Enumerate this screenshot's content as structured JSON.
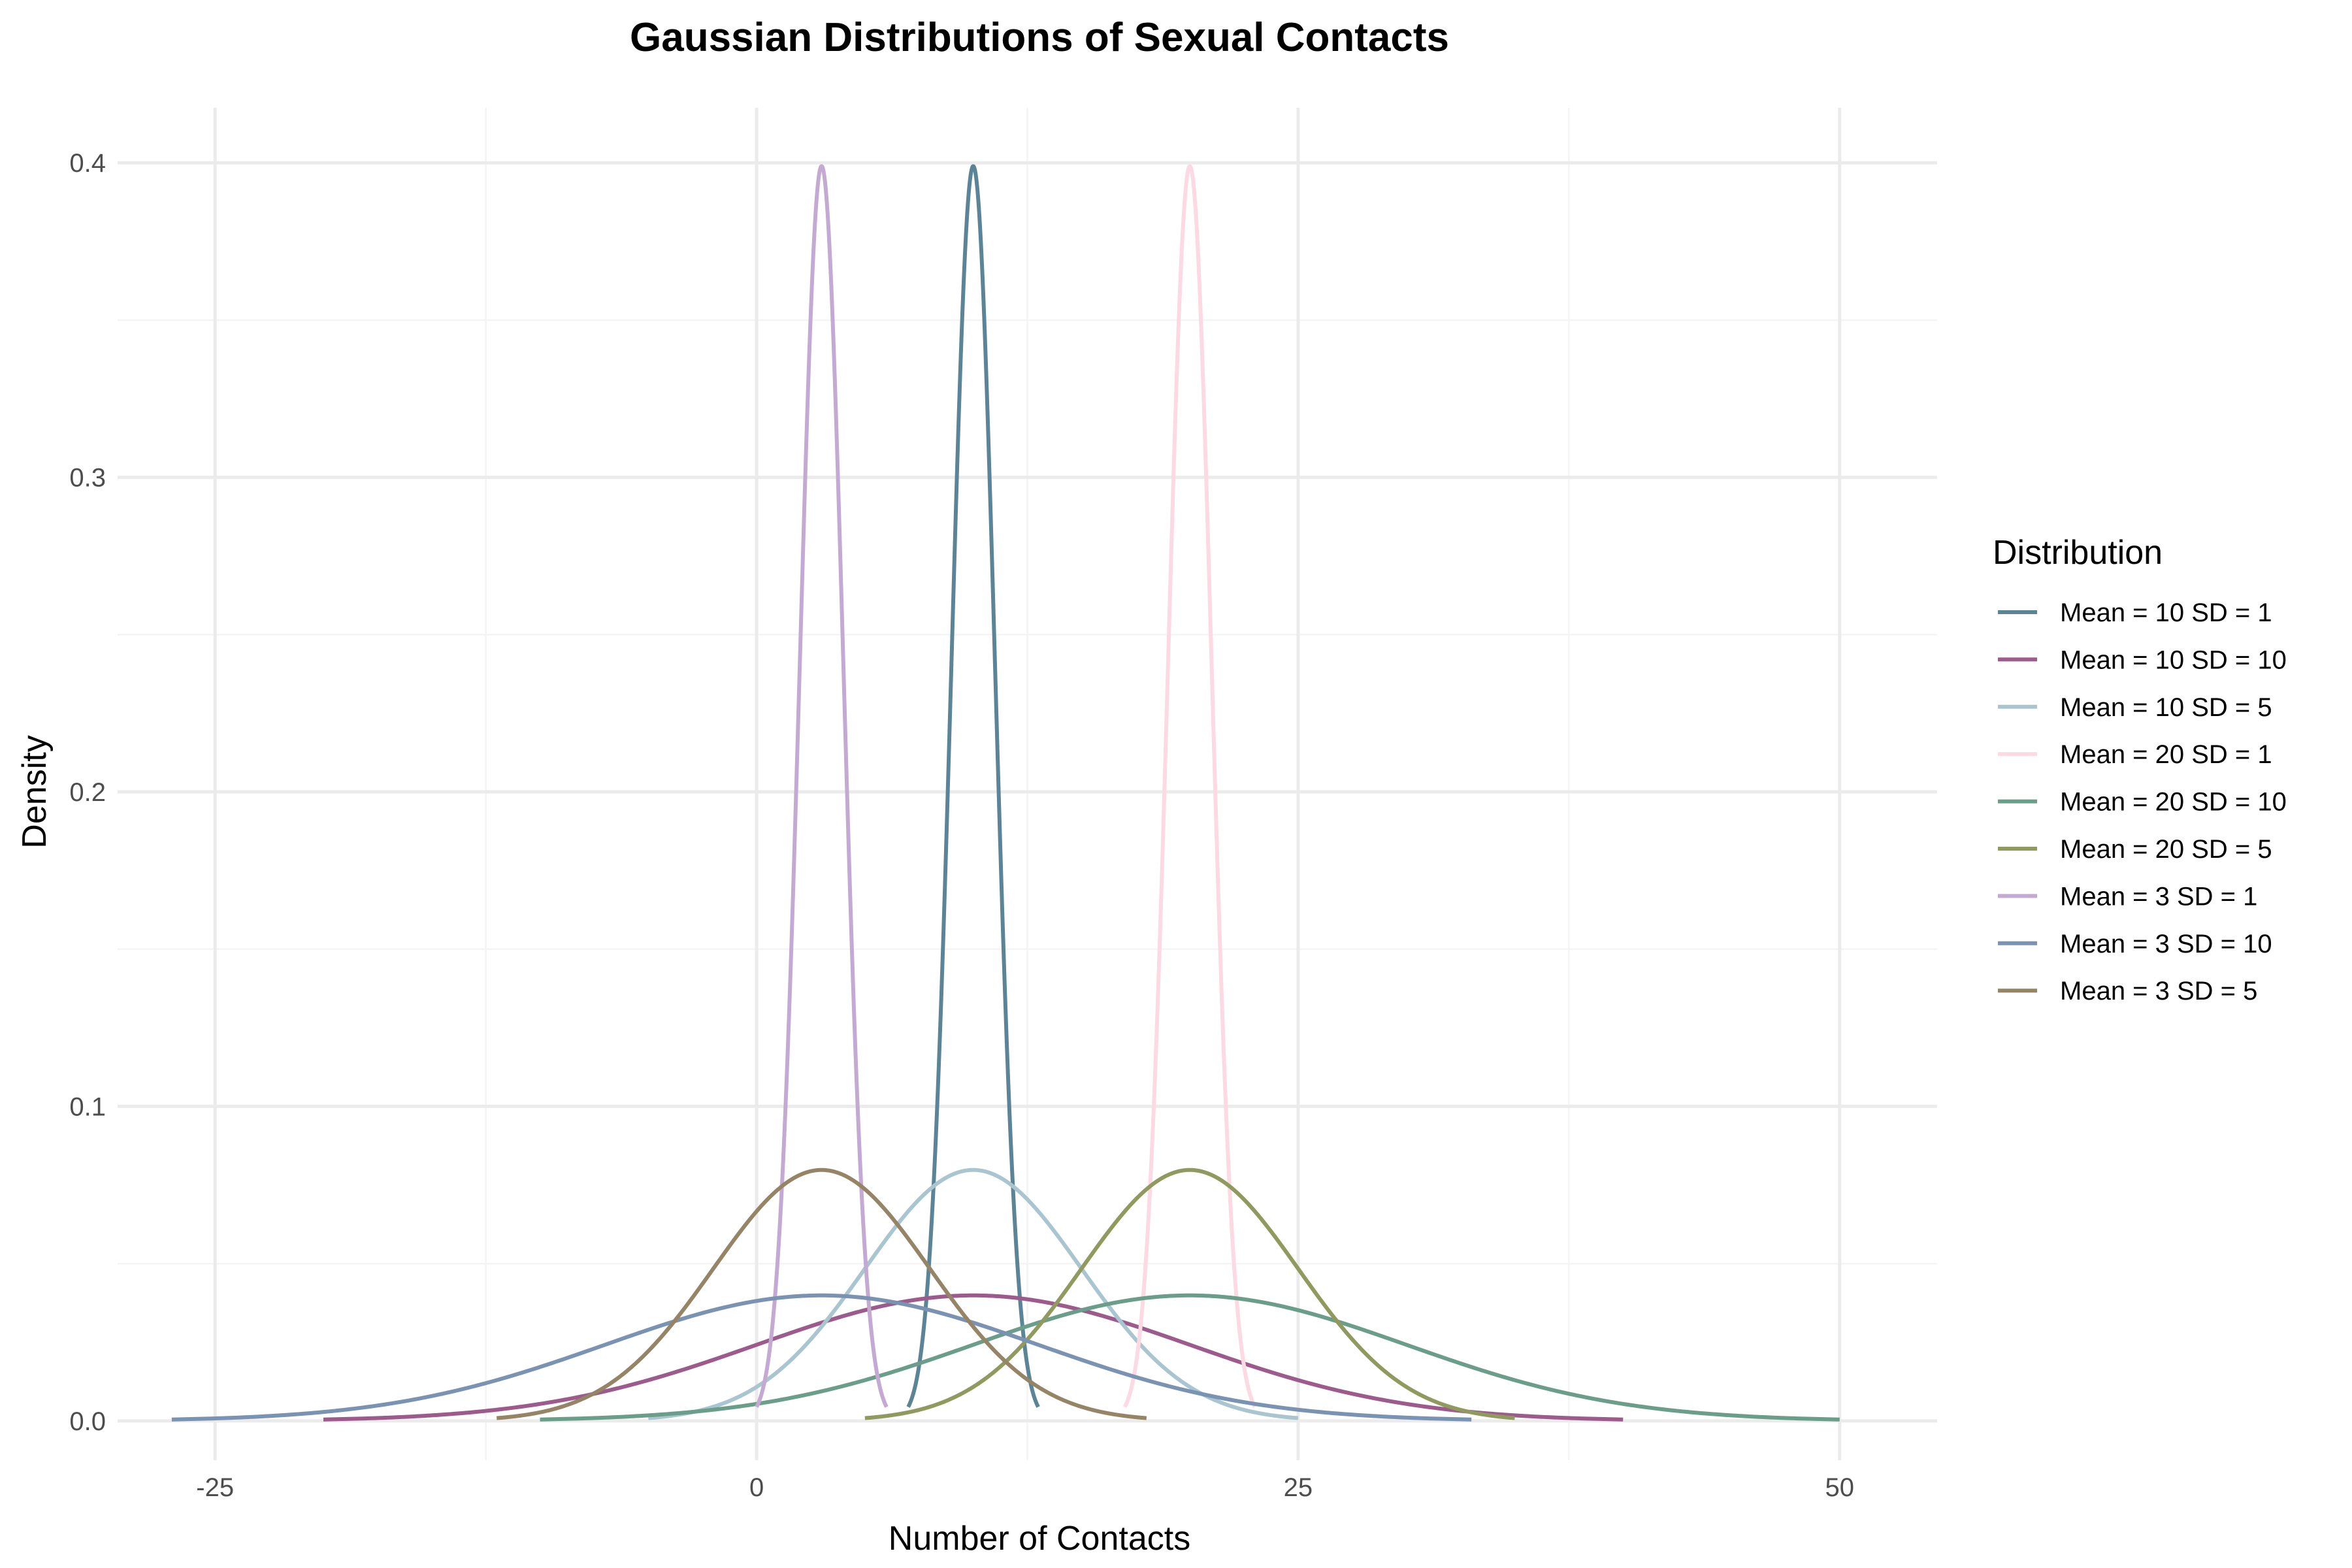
{
  "chart_data": {
    "type": "line",
    "title": "Gaussian Distributions of Sexual Contacts",
    "xlabel": "Number of Contacts",
    "ylabel": "Density",
    "xlim": [
      -29.5,
      54.5
    ],
    "ylim": [
      -0.0125,
      0.4175
    ],
    "x_ticks": [
      -25,
      0,
      25,
      50
    ],
    "x_tick_labels": [
      "-25",
      "0",
      "25",
      "50"
    ],
    "x_minor_ticks": [
      -12.5,
      12.5,
      37.5
    ],
    "y_ticks": [
      0.0,
      0.1,
      0.2,
      0.3,
      0.4
    ],
    "y_tick_labels": [
      "0.0",
      "0.1",
      "0.2",
      "0.3",
      "0.4"
    ],
    "y_minor_ticks": [
      0.05,
      0.15,
      0.25,
      0.35
    ],
    "grid": true,
    "legend": {
      "title": "Distribution",
      "position": "right"
    },
    "series": [
      {
        "name": "Mean = 10 SD = 1",
        "mean": 10,
        "sd": 1,
        "x_range": [
          7,
          13
        ],
        "color": "#5b8596"
      },
      {
        "name": "Mean = 10 SD = 10",
        "mean": 10,
        "sd": 10,
        "x_range": [
          -20,
          40
        ],
        "color": "#9c5a8d"
      },
      {
        "name": "Mean = 10 SD = 5",
        "mean": 10,
        "sd": 5,
        "x_range": [
          -5,
          25
        ],
        "color": "#a9c6d0"
      },
      {
        "name": "Mean = 20 SD = 1",
        "mean": 20,
        "sd": 1,
        "x_range": [
          17,
          23
        ],
        "color": "#fcd9e3"
      },
      {
        "name": "Mean = 20 SD = 10",
        "mean": 20,
        "sd": 10,
        "x_range": [
          -10,
          50
        ],
        "color": "#6a9e8a"
      },
      {
        "name": "Mean = 20 SD = 5",
        "mean": 20,
        "sd": 5,
        "x_range": [
          5,
          35
        ],
        "color": "#909a5e"
      },
      {
        "name": "Mean = 3 SD = 1",
        "mean": 3,
        "sd": 1,
        "x_range": [
          0,
          6
        ],
        "color": "#c4a9d2"
      },
      {
        "name": "Mean = 3 SD = 10",
        "mean": 3,
        "sd": 10,
        "x_range": [
          -27,
          33
        ],
        "color": "#7b93b3"
      },
      {
        "name": "Mean = 3 SD = 5",
        "mean": 3,
        "sd": 5,
        "x_range": [
          -12,
          18
        ],
        "color": "#958566"
      }
    ]
  }
}
